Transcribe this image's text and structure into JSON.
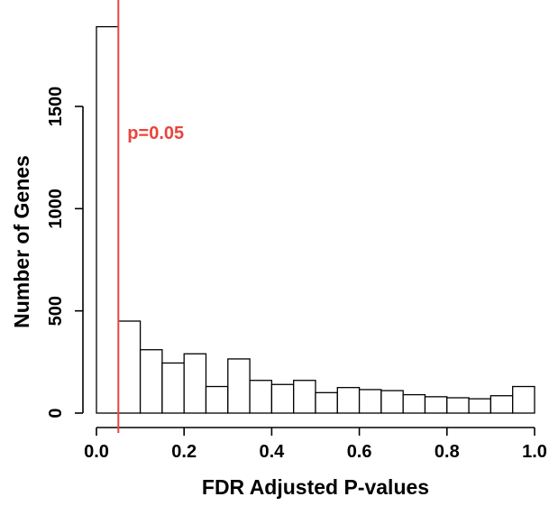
{
  "chart_data": {
    "type": "bar",
    "subtype": "histogram",
    "xlabel": "FDR Adjusted P-values",
    "ylabel": "Number of Genes",
    "xlim": [
      0.0,
      1.0
    ],
    "ylim": [
      0,
      1900
    ],
    "x_ticks": [
      0.0,
      0.2,
      0.4,
      0.6,
      0.8,
      1.0
    ],
    "x_tick_labels": [
      "0.0",
      "0.2",
      "0.4",
      "0.6",
      "0.8",
      "1.0"
    ],
    "y_ticks": [
      0,
      500,
      1000,
      1500
    ],
    "y_tick_labels": [
      "0",
      "500",
      "1000",
      "1500"
    ],
    "bin_width": 0.05,
    "bins": [
      {
        "start": 0.0,
        "end": 0.05,
        "count": 1890
      },
      {
        "start": 0.05,
        "end": 0.1,
        "count": 450
      },
      {
        "start": 0.1,
        "end": 0.15,
        "count": 310
      },
      {
        "start": 0.15,
        "end": 0.2,
        "count": 245
      },
      {
        "start": 0.2,
        "end": 0.25,
        "count": 290
      },
      {
        "start": 0.25,
        "end": 0.3,
        "count": 130
      },
      {
        "start": 0.3,
        "end": 0.35,
        "count": 265
      },
      {
        "start": 0.35,
        "end": 0.4,
        "count": 160
      },
      {
        "start": 0.4,
        "end": 0.45,
        "count": 140
      },
      {
        "start": 0.45,
        "end": 0.5,
        "count": 160
      },
      {
        "start": 0.5,
        "end": 0.55,
        "count": 100
      },
      {
        "start": 0.55,
        "end": 0.6,
        "count": 125
      },
      {
        "start": 0.6,
        "end": 0.65,
        "count": 115
      },
      {
        "start": 0.65,
        "end": 0.7,
        "count": 110
      },
      {
        "start": 0.7,
        "end": 0.75,
        "count": 90
      },
      {
        "start": 0.75,
        "end": 0.8,
        "count": 80
      },
      {
        "start": 0.8,
        "end": 0.85,
        "count": 75
      },
      {
        "start": 0.85,
        "end": 0.9,
        "count": 70
      },
      {
        "start": 0.9,
        "end": 0.95,
        "count": 85
      },
      {
        "start": 0.95,
        "end": 1.0,
        "count": 130
      }
    ],
    "bar_fill": "#ffffff",
    "bar_stroke": "#000000",
    "reference_line": {
      "x": 0.05,
      "label": "p=0.05",
      "color": "#e8453c"
    },
    "grid": false,
    "legend": false
  }
}
